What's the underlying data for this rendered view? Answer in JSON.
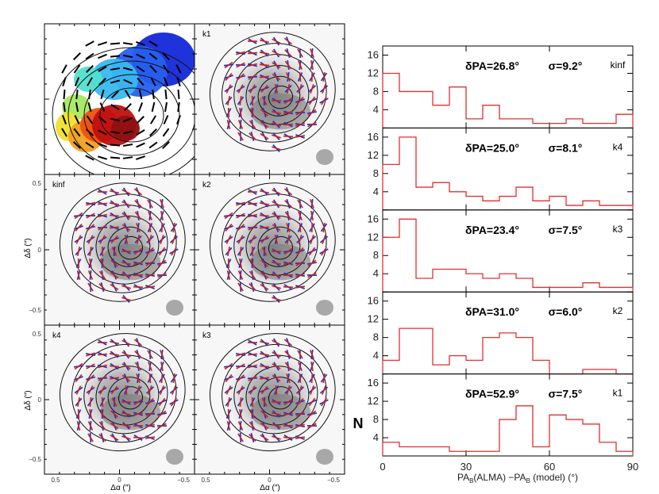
{
  "colors": {
    "histogram": "#e23030",
    "vector_obs": "#2030c8",
    "vector_model": "#cc2020",
    "beam": "#a8a8a8",
    "frame": "#000000"
  },
  "left_figure": {
    "panels": [
      {
        "id": "velocity",
        "label": "",
        "type": "velocity-map"
      },
      {
        "id": "k1",
        "label": "k1",
        "type": "polarization-map"
      },
      {
        "id": "kinf",
        "label": "kinf",
        "type": "polarization-map"
      },
      {
        "id": "k2",
        "label": "k2",
        "type": "polarization-map"
      },
      {
        "id": "k4",
        "label": "k4",
        "type": "polarization-map"
      },
      {
        "id": "k3",
        "label": "k3",
        "type": "polarization-map"
      }
    ],
    "x_axis_label": "Δα (″)",
    "y_axis_label": "Δδ (″)",
    "x_ticks": [
      "0.5",
      "0",
      "−0.5"
    ],
    "y_ticks": [
      "0.5",
      "0",
      "−0.5"
    ]
  },
  "chart_data": {
    "type": "histogram",
    "xlabel": "PA_B(ALMA) − PA_B (model) (°)",
    "ylabel": "N",
    "xlim": [
      0,
      90
    ],
    "ylim": [
      0,
      18
    ],
    "x_ticks": [
      0,
      30,
      60,
      90
    ],
    "y_ticks": [
      0,
      4,
      8,
      12,
      16
    ],
    "bin_edges": [
      0,
      6,
      12,
      18,
      24,
      30,
      36,
      42,
      48,
      54,
      60,
      66,
      72,
      78,
      84,
      90
    ],
    "panels": [
      {
        "model": "kinf",
        "stat_delta": "δPA=26.8°",
        "stat_sigma": "σ=9.2°",
        "counts": [
          12,
          8,
          8,
          5,
          9,
          2,
          5,
          2,
          2,
          1,
          1,
          2,
          1,
          1,
          3
        ]
      },
      {
        "model": "k4",
        "stat_delta": "δPA=25.0°",
        "stat_sigma": "σ=8.1°",
        "counts": [
          10,
          16,
          5,
          6,
          4,
          3,
          2,
          3,
          5,
          2,
          3,
          1,
          2,
          1,
          1
        ]
      },
      {
        "model": "k3",
        "stat_delta": "δPA=23.4°",
        "stat_sigma": "σ=7.5°",
        "counts": [
          12,
          16,
          3,
          5,
          5,
          4,
          3,
          4,
          3,
          1,
          1,
          1,
          2,
          1,
          1
        ]
      },
      {
        "model": "k2",
        "stat_delta": "δPA=31.0°",
        "stat_sigma": "σ=6.0°",
        "counts": [
          3,
          10,
          10,
          2,
          4,
          3,
          8,
          9,
          8,
          3,
          0,
          0,
          1,
          1,
          0
        ]
      },
      {
        "model": "k1",
        "stat_delta": "δPA=52.9°",
        "stat_sigma": "σ=7.5°",
        "counts": [
          3,
          2,
          2,
          2,
          1,
          1,
          1,
          8,
          11,
          2,
          9,
          8,
          7,
          3,
          1
        ]
      }
    ]
  }
}
